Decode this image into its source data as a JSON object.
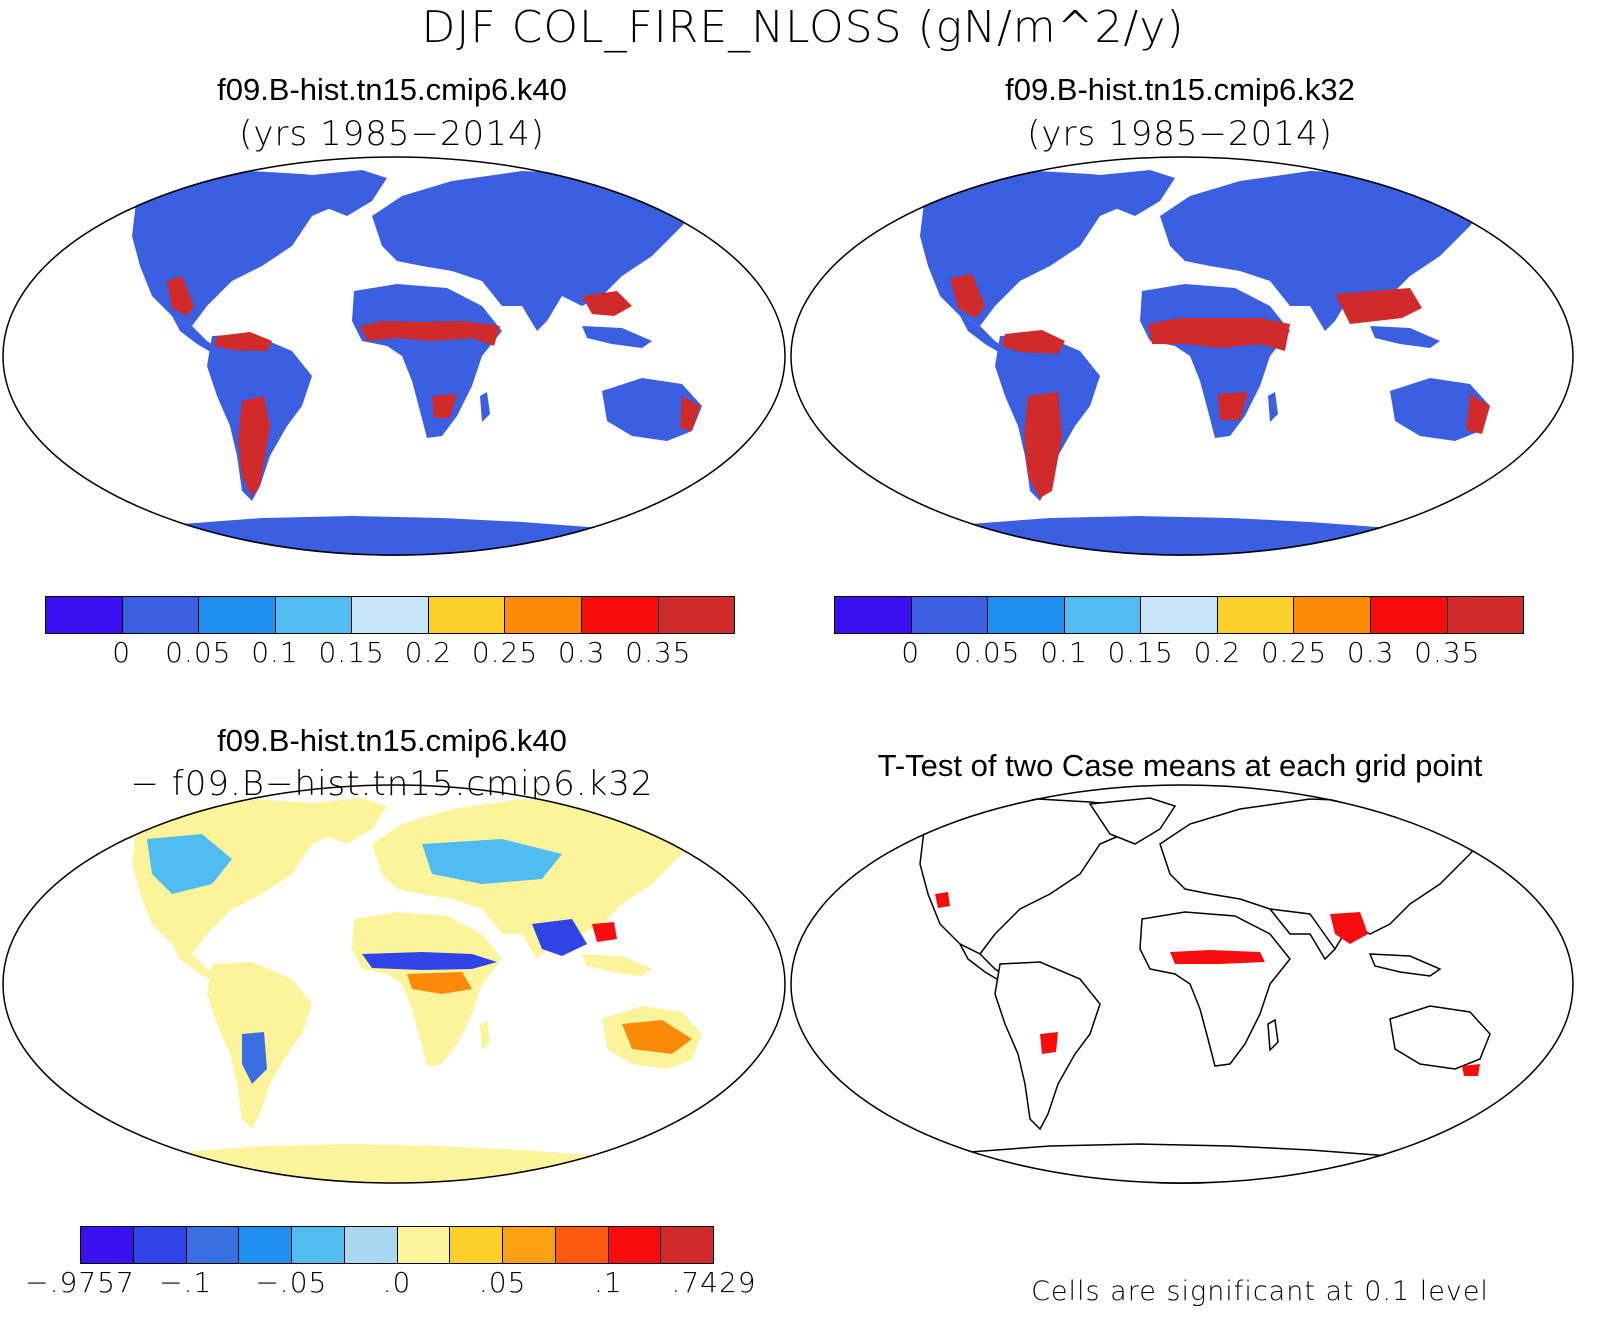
{
  "title": "DJF COL_FIRE_NLOSS (gN/m^2/y)",
  "panels": {
    "top_left": {
      "title": "f09.B-hist.tn15.cmip6.k40",
      "subtitle": "(yrs 1985−2014)"
    },
    "top_right": {
      "title": "f09.B-hist.tn15.cmip6.k32",
      "subtitle": "(yrs 1985−2014)"
    },
    "bottom_left": {
      "title": "f09.B-hist.tn15.cmip6.k40",
      "subtitle": "− f09.B−hist.tn15.cmip6.k32"
    },
    "bottom_right": {
      "title": "T-Test of two Case means at each grid point",
      "note": "Cells are significant at 0.1 level"
    }
  },
  "colorbars": {
    "absolute": {
      "colors": [
        "#3b10f0",
        "#3a5fe0",
        "#1e90f0",
        "#50bcf2",
        "#c6e6f6",
        "#fbd02a",
        "#fb8a08",
        "#f70d0d",
        "#d02a2a"
      ],
      "labels": [
        "0",
        "0.05",
        "0.1",
        "0.15",
        "0.2",
        "0.25",
        "0.3",
        "0.35"
      ]
    },
    "difference": {
      "colors": [
        "#3b10f0",
        "#2f43e6",
        "#3a6fe2",
        "#1e90f0",
        "#50bcf2",
        "#a9d9f1",
        "#fbf49a",
        "#fbd02a",
        "#fba010",
        "#fb5a10",
        "#f70d0d",
        "#d02a2a"
      ],
      "labels": [
        "−.9757",
        "−.1",
        "−.05",
        ".0",
        ".05",
        ".1",
        ".7429"
      ]
    }
  },
  "map_colors": {
    "land_low": "#3a5fe0",
    "land_high": "#d02a2a",
    "diff_neutral": "#fbf49a",
    "diff_negative": "#50bcf2",
    "significant": "#f70d0d"
  }
}
